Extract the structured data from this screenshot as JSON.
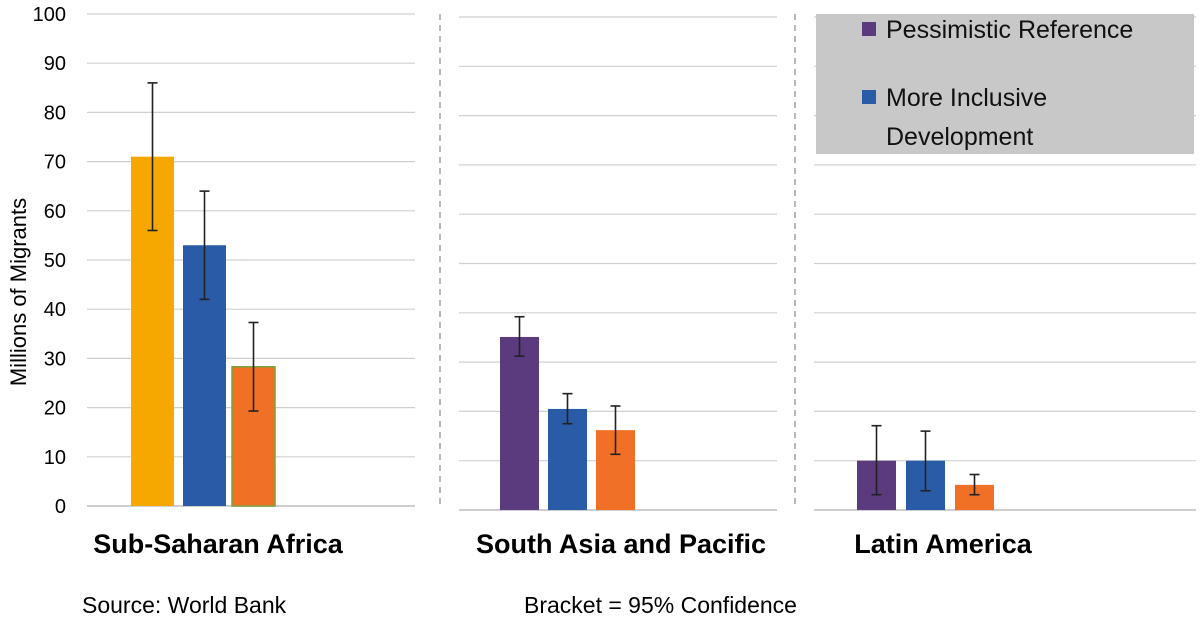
{
  "chart_data": {
    "type": "bar",
    "ylabel": "Millions of Migrants",
    "ylim": [
      0,
      100
    ],
    "yticks": [
      0,
      10,
      20,
      30,
      40,
      50,
      60,
      70,
      80,
      90,
      100
    ],
    "grid": true,
    "error_bars": "95% confidence",
    "colors": {
      "pessimistic": "#5b3a7e",
      "inclusive": "#2a5ba6",
      "third": "#f07026",
      "ssa_first": "#f7a800"
    },
    "legend": {
      "placement": "top-right",
      "background": "#c8c8c8",
      "entries": [
        {
          "label": "Pessimistic Reference",
          "color": "#5b3a7e"
        },
        {
          "label_lines": [
            "More Inclusive",
            "Development"
          ],
          "color": "#2a5ba6"
        }
      ]
    },
    "panels": [
      {
        "category": "Sub-Saharan Africa",
        "bars": [
          {
            "value": 71,
            "low": 56,
            "high": 86,
            "color": "#f7a800"
          },
          {
            "value": 53,
            "low": 42,
            "high": 64,
            "color": "#2a5ba6"
          },
          {
            "value": 28.3,
            "low": 19.3,
            "high": 37.3,
            "color": "#f07026"
          }
        ]
      },
      {
        "category": "South Asia and Pacific",
        "bars": [
          {
            "value": 35.1,
            "low": 31.2,
            "high": 39.2,
            "color": "#5b3a7e"
          },
          {
            "value": 20.5,
            "low": 17.5,
            "high": 23.6,
            "color": "#2a5ba6"
          },
          {
            "value": 16.2,
            "low": 11.3,
            "high": 21.1,
            "color": "#f07026"
          }
        ]
      },
      {
        "category": "Latin America",
        "bars": [
          {
            "value": 10,
            "low": 3.1,
            "high": 17.1,
            "color": "#5b3a7e"
          },
          {
            "value": 10,
            "low": 3.9,
            "high": 16,
            "color": "#2a5ba6"
          },
          {
            "value": 5.1,
            "low": 3.1,
            "high": 7.2,
            "color": "#f07026"
          }
        ]
      }
    ]
  },
  "footer": {
    "source": "Source: World Bank",
    "note": "Bracket = 95% Confidence"
  }
}
